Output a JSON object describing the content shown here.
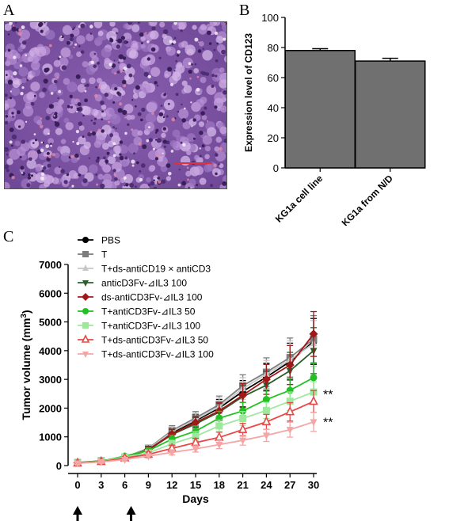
{
  "panels": {
    "a": "A",
    "b": "B",
    "c": "C"
  },
  "histology": {
    "scale_bar_color": "#e0303a"
  },
  "chart_data": [
    {
      "type": "bar",
      "panel": "B",
      "categories": [
        "KG1a cell line",
        "KG1a from N/D"
      ],
      "values": [
        78,
        71
      ],
      "errors": [
        1.2,
        1.8
      ],
      "ylabel": "Expression level of CD123",
      "ylim": [
        0,
        100
      ],
      "yticks": [
        0,
        20,
        40,
        60,
        80,
        100
      ],
      "bar_color": "#707070"
    },
    {
      "type": "line",
      "panel": "C",
      "x": [
        0,
        3,
        6,
        9,
        12,
        15,
        18,
        21,
        24,
        27,
        30
      ],
      "xlabel": "Days",
      "ylabel_main": "Tumor volume (mm",
      "ylabel_sup": "3",
      "ylabel_end": ")",
      "xlim": [
        0,
        30
      ],
      "ylim": [
        0,
        7000
      ],
      "yticks": [
        0,
        1000,
        2000,
        3000,
        4000,
        5000,
        6000,
        7000
      ],
      "annotations": [
        {
          "text": "**",
          "y": 2550
        },
        {
          "text": "**",
          "y": 1580
        }
      ],
      "arrows": [
        {
          "label": "first",
          "x": 0
        },
        {
          "label": "second",
          "x": 6.8
        }
      ],
      "series": [
        {
          "name": "PBS",
          "color": "#000000",
          "marker": "circle",
          "values": [
            100,
            160,
            280,
            560,
            1150,
            1560,
            2000,
            2580,
            3080,
            3620,
            4320
          ],
          "errors": [
            30,
            40,
            60,
            110,
            170,
            220,
            300,
            380,
            480,
            640,
            800
          ]
        },
        {
          "name": "T",
          "color": "#7d7d7d",
          "marker": "square",
          "values": [
            105,
            165,
            290,
            600,
            1220,
            1660,
            2120,
            2780,
            3250,
            3760,
            4400
          ],
          "errors": [
            30,
            40,
            60,
            110,
            170,
            220,
            300,
            380,
            500,
            680,
            820
          ]
        },
        {
          "name": "T+ds-antiCD19 × antiCD3",
          "color": "#c8c8c8",
          "marker": "triangle",
          "values": [
            100,
            160,
            280,
            580,
            1180,
            1600,
            2050,
            2680,
            3180,
            3680,
            4250
          ],
          "errors": [
            30,
            40,
            60,
            110,
            170,
            220,
            300,
            380,
            480,
            660,
            800
          ]
        },
        {
          "name": "anticD3Fv-⊿IL3 100",
          "color": "#2c5e2c",
          "marker": "triangle-down",
          "values": [
            100,
            155,
            270,
            540,
            1080,
            1450,
            1860,
            2400,
            2800,
            3300,
            4000
          ],
          "errors": [
            30,
            40,
            60,
            110,
            170,
            220,
            300,
            380,
            480,
            640,
            800
          ]
        },
        {
          "name": "ds-antiCD3Fv-⊿IL3 100",
          "color": "#a01818",
          "marker": "diamond",
          "values": [
            95,
            160,
            280,
            560,
            1100,
            1500,
            1900,
            2450,
            3000,
            3500,
            4580
          ],
          "errors": [
            30,
            40,
            60,
            110,
            170,
            220,
            300,
            400,
            520,
            680,
            780
          ]
        },
        {
          "name": "T+antiCD3Fv-⊿IL3 50",
          "color": "#22c022",
          "marker": "circle",
          "values": [
            95,
            150,
            330,
            520,
            920,
            1200,
            1650,
            1900,
            2300,
            2620,
            3060
          ],
          "errors": [
            30,
            40,
            60,
            100,
            140,
            180,
            240,
            300,
            360,
            420,
            500
          ]
        },
        {
          "name": "T+antiCD3Fv-⊿IL3 100",
          "color": "#9ee89e",
          "marker": "square",
          "values": [
            90,
            145,
            300,
            440,
            760,
            1020,
            1380,
            1640,
            1920,
            2240,
            2560
          ],
          "errors": [
            30,
            40,
            60,
            90,
            120,
            160,
            200,
            240,
            280,
            320,
            360
          ]
        },
        {
          "name": "T+ds-antiCD3Fv-⊿IL3 50",
          "color": "#e84848",
          "marker": "triangle-open",
          "values": [
            85,
            135,
            260,
            390,
            600,
            800,
            980,
            1250,
            1520,
            1870,
            2230
          ],
          "errors": [
            30,
            40,
            55,
            80,
            110,
            150,
            180,
            220,
            260,
            320,
            380
          ]
        },
        {
          "name": "T+ds-antiCD3Fv-⊿IL3 100",
          "color": "#f4a6a6",
          "marker": "triangle-down",
          "values": [
            80,
            125,
            210,
            330,
            460,
            580,
            730,
            880,
            1050,
            1250,
            1520
          ],
          "errors": [
            30,
            40,
            50,
            70,
            90,
            110,
            140,
            170,
            210,
            260,
            330
          ]
        }
      ]
    }
  ]
}
